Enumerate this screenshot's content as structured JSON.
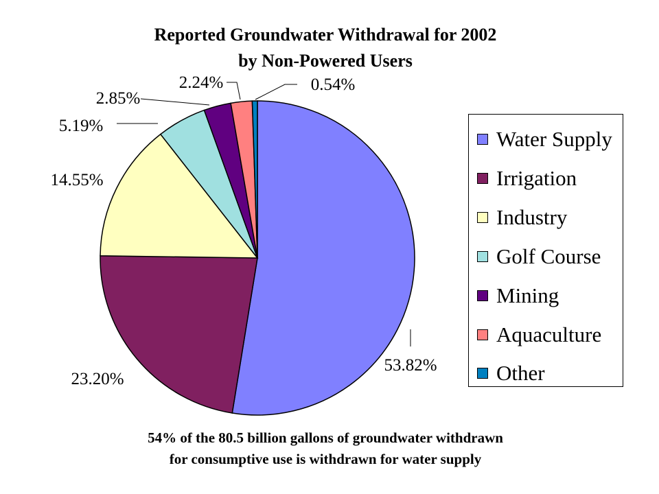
{
  "title_lines": [
    "Reported Groundwater Withdrawal for 2002",
    "by Non-Powered Users"
  ],
  "caption_lines": [
    "54% of the 80.5 billion gallons of groundwater withdrawn",
    "for consumptive use is withdrawn for water supply"
  ],
  "chart_data": {
    "type": "pie",
    "title": "Reported Groundwater Withdrawal for 2002 by Non-Powered Users",
    "slices": [
      {
        "name": "Water Supply",
        "value": 53.82,
        "label": "53.82%",
        "color": "#8080FF"
      },
      {
        "name": "Irrigation",
        "value": 23.2,
        "label": "23.20%",
        "color": "#802060"
      },
      {
        "name": "Industry",
        "value": 14.55,
        "label": "14.55%",
        "color": "#FFFFC0"
      },
      {
        "name": "Golf Course",
        "value": 5.19,
        "label": "5.19%",
        "color": "#A0E0E0"
      },
      {
        "name": "Mining",
        "value": 2.85,
        "label": "2.85%",
        "color": "#600080"
      },
      {
        "name": "Aquaculture",
        "value": 2.24,
        "label": "2.24%",
        "color": "#FF8080"
      },
      {
        "name": "Other",
        "value": 0.54,
        "label": "0.54%",
        "color": "#0080C0"
      }
    ],
    "legend_position": "right"
  }
}
